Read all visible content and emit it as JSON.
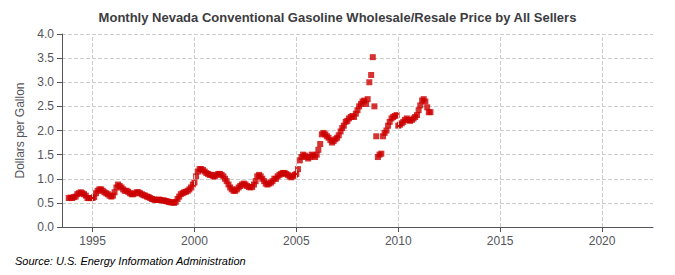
{
  "chart_data": {
    "type": "scatter",
    "title": "Monthly Nevada Conventional Gasoline Wholesale/Resale Price by All Sellers",
    "ylabel": "Dollars per Gallon",
    "annotations": [
      "Source: U.S. Energy Information Administration"
    ],
    "xlim": [
      1993.5,
      2022.5
    ],
    "ylim": [
      0.0,
      4.0
    ],
    "xticks": [
      1995,
      2000,
      2005,
      2010,
      2015,
      2020
    ],
    "yticks": [
      {
        "value": 0.0,
        "label": "0.0"
      },
      0.5,
      {
        "value": 1.0,
        "label": "1.0"
      },
      1.5,
      {
        "value": 2.0,
        "label": "2.0"
      },
      2.5,
      {
        "value": 3.0,
        "label": "3.0"
      },
      3.5,
      {
        "value": 4.0,
        "label": "4.0"
      }
    ],
    "grid": true,
    "color": "#cc0000",
    "marker": "square",
    "x": [
      1993.83,
      1993.92,
      1994.0,
      1994.08,
      1994.17,
      1994.25,
      1994.33,
      1994.42,
      1994.5,
      1994.58,
      1994.67,
      1994.75,
      1994.83,
      1994.92,
      1995.0,
      1995.08,
      1995.17,
      1995.25,
      1995.33,
      1995.42,
      1995.5,
      1995.58,
      1995.67,
      1995.75,
      1995.83,
      1995.92,
      1996.0,
      1996.08,
      1996.17,
      1996.25,
      1996.33,
      1996.42,
      1996.5,
      1996.58,
      1996.67,
      1996.75,
      1996.83,
      1996.92,
      1997.0,
      1997.08,
      1997.17,
      1997.25,
      1997.33,
      1997.42,
      1997.5,
      1997.58,
      1997.67,
      1997.75,
      1997.83,
      1997.92,
      1998.0,
      1998.08,
      1998.17,
      1998.25,
      1998.33,
      1998.42,
      1998.5,
      1998.58,
      1998.67,
      1998.75,
      1998.83,
      1998.92,
      1999.0,
      1999.08,
      1999.17,
      1999.25,
      1999.33,
      1999.42,
      1999.5,
      1999.58,
      1999.67,
      1999.75,
      1999.83,
      1999.92,
      2000.0,
      2000.08,
      2000.17,
      2000.25,
      2000.33,
      2000.42,
      2000.5,
      2000.58,
      2000.67,
      2000.75,
      2000.83,
      2000.92,
      2001.0,
      2001.08,
      2001.17,
      2001.25,
      2001.33,
      2001.42,
      2001.5,
      2001.58,
      2001.67,
      2001.75,
      2001.83,
      2001.92,
      2002.0,
      2002.08,
      2002.17,
      2002.25,
      2002.33,
      2002.42,
      2002.5,
      2002.58,
      2002.67,
      2002.75,
      2002.83,
      2002.92,
      2003.0,
      2003.08,
      2003.17,
      2003.25,
      2003.33,
      2003.42,
      2003.5,
      2003.58,
      2003.67,
      2003.75,
      2003.83,
      2003.92,
      2004.0,
      2004.08,
      2004.17,
      2004.25,
      2004.33,
      2004.42,
      2004.5,
      2004.58,
      2004.67,
      2004.75,
      2004.83,
      2004.92,
      2005.0,
      2005.08,
      2005.17,
      2005.25,
      2005.33,
      2005.42,
      2005.5,
      2005.58,
      2005.67,
      2005.75,
      2005.83,
      2005.92,
      2006.0,
      2006.08,
      2006.17,
      2006.25,
      2006.33,
      2006.42,
      2006.5,
      2006.58,
      2006.67,
      2006.75,
      2006.83,
      2006.92,
      2007.0,
      2007.08,
      2007.17,
      2007.25,
      2007.33,
      2007.42,
      2007.5,
      2007.58,
      2007.67,
      2007.75,
      2007.83,
      2007.92,
      2008.0,
      2008.08,
      2008.17,
      2008.25,
      2008.33,
      2008.42,
      2008.5,
      2008.58,
      2008.67,
      2008.75,
      2008.83,
      2008.92,
      2009.0,
      2009.08,
      2009.17,
      2009.25,
      2009.33,
      2009.42,
      2009.5,
      2009.58,
      2009.67,
      2009.75,
      2009.83,
      2009.92,
      2010.0,
      2010.08,
      2010.17,
      2010.25,
      2010.33,
      2010.42,
      2010.5,
      2010.58,
      2010.67,
      2010.75,
      2010.83,
      2010.92,
      2011.0,
      2011.08,
      2011.17,
      2011.25,
      2011.33,
      2011.42,
      2011.5,
      2011.58
    ],
    "values": [
      0.6,
      0.61,
      0.6,
      0.62,
      0.63,
      0.68,
      0.7,
      0.72,
      0.7,
      0.68,
      0.65,
      0.6,
      0.6,
      0.6,
      0.6,
      0.62,
      0.7,
      0.75,
      0.78,
      0.78,
      0.75,
      0.72,
      0.7,
      0.68,
      0.65,
      0.63,
      0.65,
      0.72,
      0.82,
      0.88,
      0.85,
      0.82,
      0.78,
      0.75,
      0.75,
      0.73,
      0.7,
      0.68,
      0.68,
      0.7,
      0.72,
      0.72,
      0.7,
      0.68,
      0.66,
      0.65,
      0.63,
      0.62,
      0.6,
      0.58,
      0.57,
      0.56,
      0.56,
      0.57,
      0.56,
      0.55,
      0.55,
      0.54,
      0.53,
      0.52,
      0.51,
      0.51,
      0.5,
      0.52,
      0.58,
      0.63,
      0.68,
      0.7,
      0.72,
      0.73,
      0.75,
      0.78,
      0.82,
      0.88,
      0.92,
      1.05,
      1.15,
      1.2,
      1.2,
      1.18,
      1.15,
      1.12,
      1.1,
      1.08,
      1.08,
      1.05,
      1.05,
      1.08,
      1.1,
      1.1,
      1.08,
      1.05,
      1.0,
      0.95,
      0.88,
      0.82,
      0.78,
      0.75,
      0.75,
      0.78,
      0.82,
      0.85,
      0.88,
      0.9,
      0.88,
      0.85,
      0.83,
      0.82,
      0.83,
      0.88,
      0.95,
      1.05,
      1.08,
      1.05,
      1.0,
      0.95,
      0.9,
      0.88,
      0.9,
      0.92,
      0.95,
      1.0,
      1.0,
      1.05,
      1.08,
      1.1,
      1.12,
      1.12,
      1.1,
      1.08,
      1.05,
      1.03,
      1.05,
      1.08,
      1.1,
      1.2,
      1.38,
      1.45,
      1.5,
      1.48,
      1.45,
      1.42,
      1.45,
      1.5,
      1.48,
      1.45,
      1.5,
      1.6,
      1.72,
      1.92,
      1.95,
      1.92,
      1.88,
      1.85,
      1.8,
      1.75,
      1.78,
      1.82,
      1.85,
      1.9,
      1.98,
      2.05,
      2.1,
      2.18,
      2.2,
      2.25,
      2.28,
      2.3,
      2.28,
      2.35,
      2.42,
      2.5,
      2.55,
      2.6,
      2.62,
      2.55,
      2.65,
      3.0,
      3.15,
      3.52,
      2.5,
      1.88,
      1.45,
      1.5,
      1.52,
      1.88,
      1.95,
      2.0,
      2.1,
      2.18,
      2.25,
      2.28,
      2.3,
      2.32,
      2.1,
      2.12,
      2.15,
      2.18,
      2.22,
      2.25,
      2.22,
      2.2,
      2.22,
      2.25,
      2.28,
      2.32,
      2.42,
      2.52,
      2.62,
      2.65,
      2.6,
      2.48,
      2.38,
      2.38
    ]
  }
}
